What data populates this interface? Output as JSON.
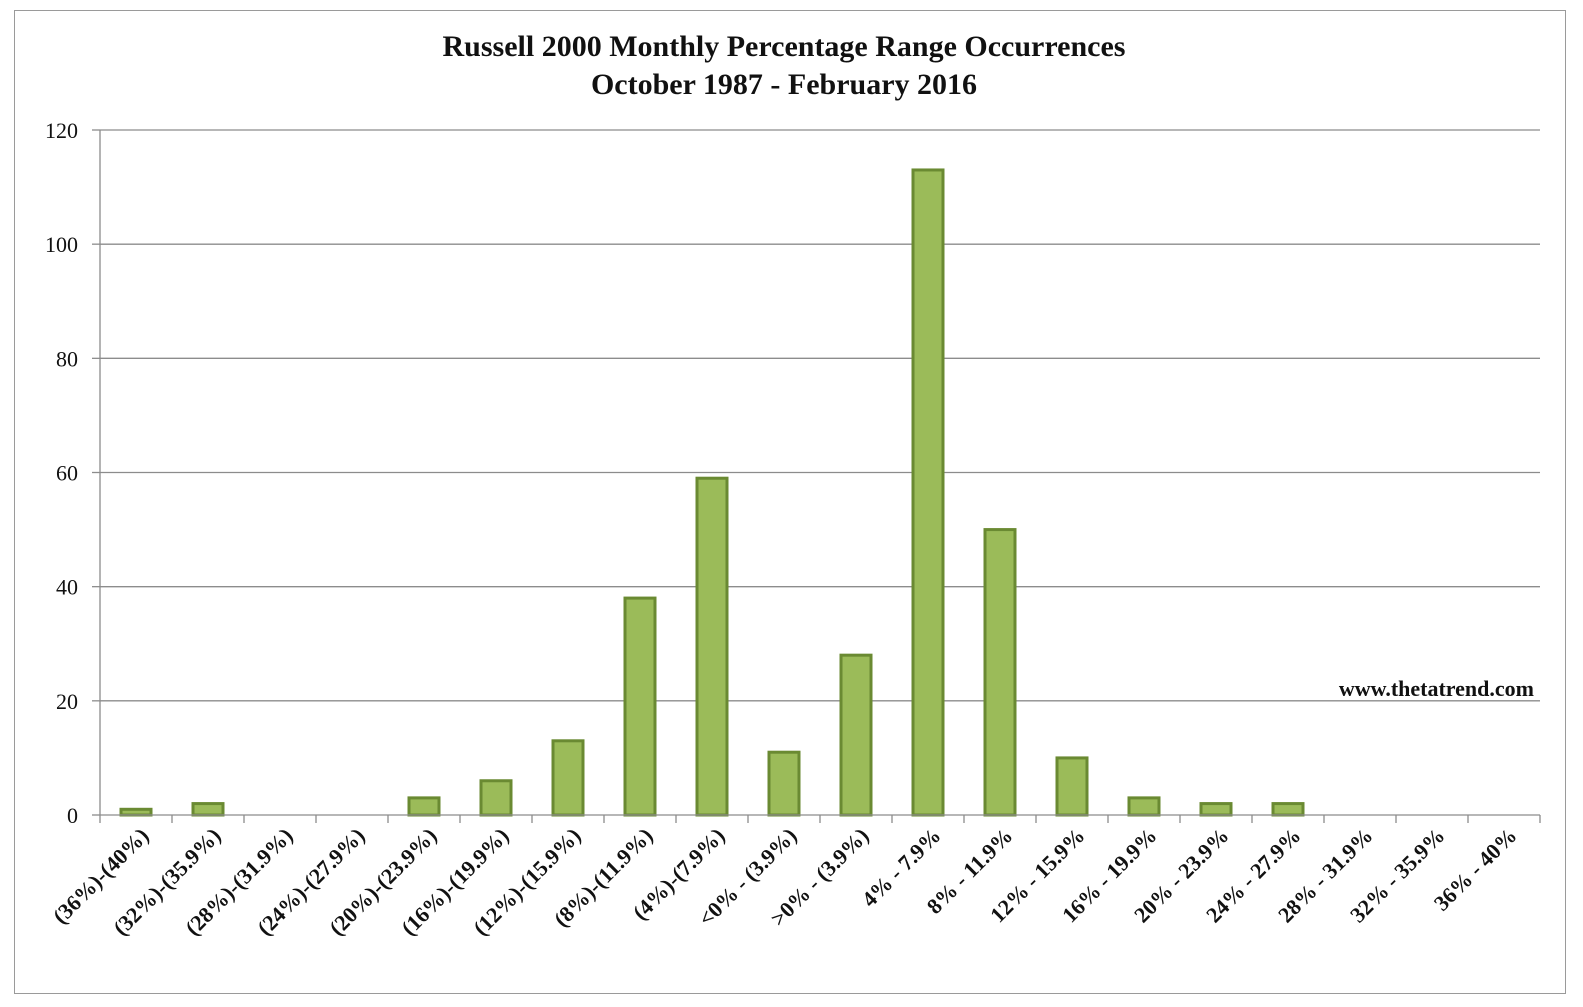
{
  "chart_data": {
    "type": "bar",
    "title": "Russell 2000 Monthly Percentage Range Occurrences",
    "subtitle": "October 1987 - February 2016",
    "xlabel": "",
    "ylabel": "",
    "ylim": [
      0,
      120
    ],
    "yticks": [
      0,
      20,
      40,
      60,
      80,
      100,
      120
    ],
    "grid": true,
    "legend": "none",
    "categories": [
      "(36%)-(40%)",
      "(32%)-(35.9%)",
      "(28%)-(31.9%)",
      "(24%)-(27.9%)",
      "(20%)-(23.9%)",
      "(16%)-(19.9%)",
      "(12%)-(15.9%)",
      "(8%)-(11.9%)",
      "(4%)-(7.9%)",
      "<0% - (3.9%)",
      ">0% - (3.9%)",
      "4% - 7.9%",
      "8% - 11.9%",
      "12% - 15.9%",
      "16% - 19.9%",
      "20% - 23.9%",
      "24% - 27.9%",
      "28% - 31.9%",
      "32% - 35.9%",
      "36% - 40%"
    ],
    "values": [
      1,
      2,
      0,
      0,
      3,
      6,
      13,
      38,
      59,
      11,
      28,
      113,
      50,
      10,
      3,
      2,
      2,
      0,
      0,
      0
    ],
    "annotation": "www.thetatrend.com",
    "colors": {
      "bar_fill": "#9bbb59",
      "bar_stroke": "#6a8a32",
      "gridline": "#8c8c8c",
      "axis": "#8c8c8c"
    }
  }
}
